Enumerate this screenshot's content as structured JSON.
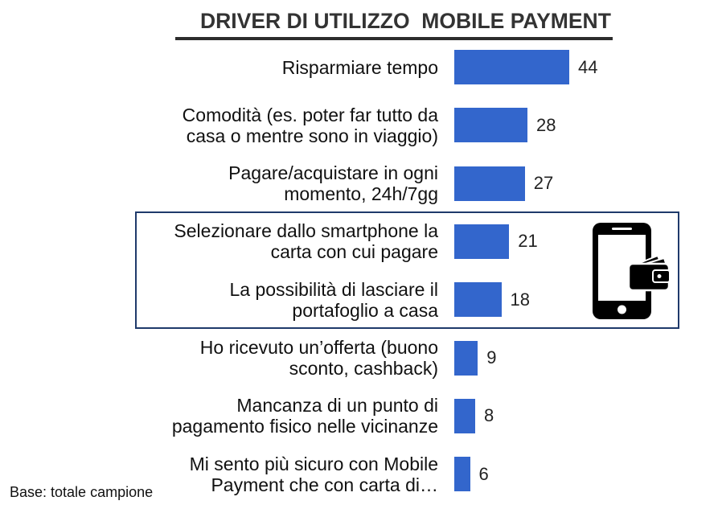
{
  "chart_data": {
    "type": "bar",
    "orientation": "horizontal",
    "title": "DRIVER DI UTILIZZO  MOBILE PAYMENT",
    "categories": [
      "Risparmiare tempo",
      "Comodità (es. poter far tutto da casa o mentre sono in viaggio)",
      "Pagare/acquistare in ogni momento, 24h/7gg",
      "Selezionare dallo smartphone la carta con cui pagare",
      "La possibilità di lasciare il portafoglio a casa",
      "Ho ricevuto un’offerta (buono sconto, cashback)",
      "Mancanza di un punto di pagamento fisico nelle vicinanze",
      "Mi sento più sicuro con Mobile Payment che con carta di…"
    ],
    "values": [
      44,
      28,
      27,
      21,
      18,
      9,
      8,
      6
    ],
    "data_labels": true,
    "grid": false,
    "legend": "none",
    "bar_color": "#3366cc",
    "highlighted_categories": [
      3,
      4
    ]
  },
  "highlight": {
    "border_color": "#1f3a6b",
    "icon": "smartphone-wallet-icon"
  },
  "footnote": "Base: totale campione"
}
